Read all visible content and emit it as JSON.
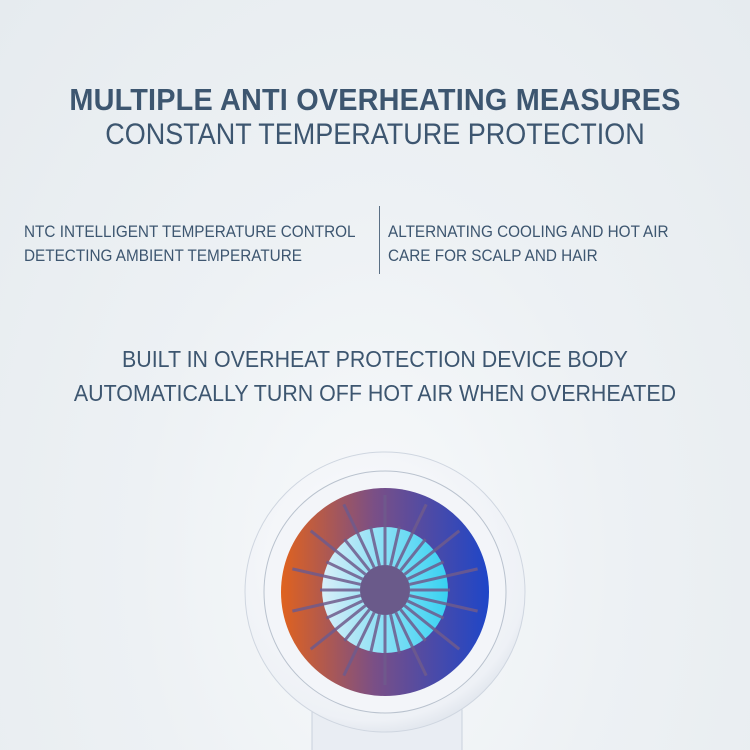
{
  "heading": {
    "title": "MULTIPLE ANTI OVERHEATING MEASURES",
    "subtitle": "CONSTANT TEMPERATURE PROTECTION"
  },
  "features": {
    "left": {
      "line1": "NTC INTELLIGENT TEMPERATURE CONTROL",
      "line2": "DETECTING AMBIENT TEMPERATURE"
    },
    "right": {
      "line1": "ALTERNATING COOLING AND HOT AIR",
      "line2": "CARE FOR SCALP AND HAIR"
    }
  },
  "protection": {
    "line1": "BUILT IN OVERHEAT PROTECTION DEVICE BODY",
    "line2": "AUTOMATICALLY TURN OFF HOT AIR WHEN OVERHEATED"
  },
  "colors": {
    "text": "#3d5670",
    "hot": "#e0621e",
    "cold": "#1e46c8",
    "fan": "#5fd8f5"
  }
}
